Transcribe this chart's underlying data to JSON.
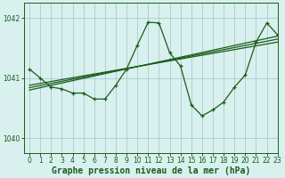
{
  "title": "Graphe pression niveau de la mer (hPa)",
  "background_color": "#d8f0ee",
  "grid_color": "#aacccc",
  "line_color": "#1a5c1a",
  "xlim": [
    -0.5,
    23
  ],
  "ylim": [
    1039.75,
    1042.25
  ],
  "yticks": [
    1040,
    1041,
    1042
  ],
  "xticks": [
    0,
    1,
    2,
    3,
    4,
    5,
    6,
    7,
    8,
    9,
    10,
    11,
    12,
    13,
    14,
    15,
    16,
    17,
    18,
    19,
    20,
    21,
    22,
    23
  ],
  "data_x": [
    0,
    1,
    2,
    3,
    4,
    5,
    6,
    7,
    8,
    9,
    10,
    11,
    12,
    13,
    14,
    15,
    16,
    17,
    18,
    19,
    20,
    21,
    22,
    23
  ],
  "data_y": [
    1041.15,
    1041.0,
    1040.85,
    1040.82,
    1040.75,
    1040.75,
    1040.65,
    1040.65,
    1040.88,
    1041.15,
    1041.55,
    1041.93,
    1041.92,
    1041.42,
    1041.2,
    1040.55,
    1040.37,
    1040.47,
    1040.6,
    1040.85,
    1041.05,
    1041.6,
    1041.92,
    1041.72
  ],
  "trend1_x": [
    0,
    23
  ],
  "trend1_y": [
    1040.88,
    1041.6
  ],
  "trend2_x": [
    0,
    23
  ],
  "trend2_y": [
    1040.84,
    1041.65
  ],
  "trend3_x": [
    0,
    23
  ],
  "trend3_y": [
    1040.8,
    1041.7
  ],
  "marker_size": 3,
  "tick_fontsize": 5.5,
  "label_fontsize": 7
}
